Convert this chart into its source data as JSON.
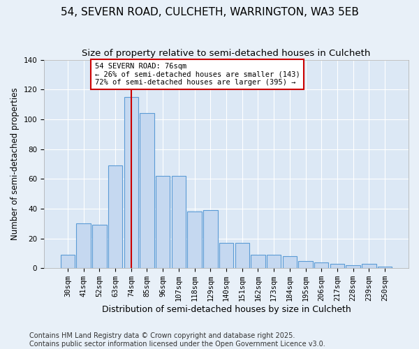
{
  "title1": "54, SEVERN ROAD, CULCHETH, WARRINGTON, WA3 5EB",
  "title2": "Size of property relative to semi-detached houses in Culcheth",
  "xlabel": "Distribution of semi-detached houses by size in Culcheth",
  "ylabel": "Number of semi-detached properties",
  "categories": [
    "30sqm",
    "41sqm",
    "52sqm",
    "63sqm",
    "74sqm",
    "85sqm",
    "96sqm",
    "107sqm",
    "118sqm",
    "129sqm",
    "140sqm",
    "151sqm",
    "162sqm",
    "173sqm",
    "184sqm",
    "195sqm",
    "206sqm",
    "217sqm",
    "228sqm",
    "239sqm",
    "250sqm"
  ],
  "values": [
    9,
    30,
    29,
    69,
    115,
    104,
    62,
    62,
    38,
    39,
    17,
    17,
    9,
    9,
    8,
    5,
    4,
    3,
    2,
    3,
    1
  ],
  "bar_color": "#c5d8f0",
  "bar_edge_color": "#5b9bd5",
  "annotation_line1": "54 SEVERN ROAD: 76sqm",
  "annotation_line2": "← 26% of semi-detached houses are smaller (143)",
  "annotation_line3": "72% of semi-detached houses are larger (395) →",
  "vline_x": 4,
  "vline_color": "#cc0000",
  "annotation_box_color": "#ffffff",
  "annotation_box_edge": "#cc0000",
  "ylim": [
    0,
    140
  ],
  "yticks": [
    0,
    20,
    40,
    60,
    80,
    100,
    120,
    140
  ],
  "bg_color": "#e8f0f8",
  "plot_bg_color": "#dce8f5",
  "footer": "Contains HM Land Registry data © Crown copyright and database right 2025.\nContains public sector information licensed under the Open Government Licence v3.0.",
  "title_fontsize": 11,
  "subtitle_fontsize": 9.5,
  "xlabel_fontsize": 9,
  "ylabel_fontsize": 8.5,
  "tick_fontsize": 7.5,
  "footer_fontsize": 7
}
